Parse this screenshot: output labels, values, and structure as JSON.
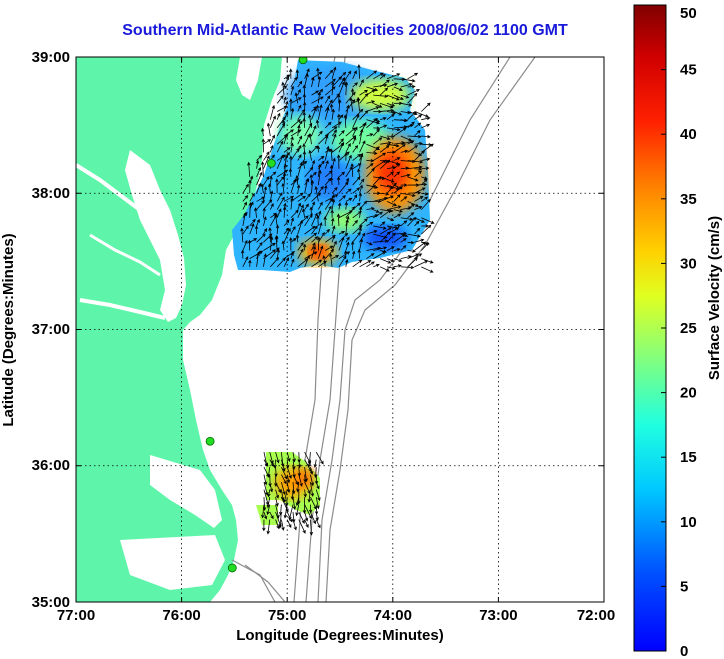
{
  "title": "Southern Mid-Atlantic Raw Velocities 2008/06/02 1100 GMT",
  "xlabel": "Longitude (Degrees:Minutes)",
  "ylabel": "Latitude (Degrees:Minutes)",
  "x_ticks": [
    "77:00",
    "76:00",
    "75:00",
    "74:00",
    "73:00",
    "72:00"
  ],
  "y_ticks": [
    "39:00",
    "38:00",
    "37:00",
    "36:00",
    "35:00"
  ],
  "colorbar": {
    "label": "Surface Velocity (cm/s)",
    "ticks": [
      "0",
      "5",
      "10",
      "15",
      "20",
      "25",
      "30",
      "35",
      "40",
      "45",
      "50"
    ],
    "range": [
      0,
      50
    ]
  },
  "colors": {
    "title": "#1a1adb",
    "land": "#5ef5aa",
    "contour": "#8c8c8c",
    "station": "#22dd22"
  },
  "map": {
    "lon_range": [
      -77,
      -72
    ],
    "lat_range": [
      35,
      39
    ],
    "grid": "dotted",
    "stations": [
      {
        "lon": -74.85,
        "lat": 38.98
      },
      {
        "lon": -75.15,
        "lat": 38.22
      },
      {
        "lon": -75.73,
        "lat": 36.18
      },
      {
        "lon": -75.52,
        "lat": 35.25
      }
    ],
    "velocity_patches": [
      {
        "region": "northern",
        "lon_min": -75.55,
        "lon_max": -73.7,
        "lat_min": 37.4,
        "lat_max": 38.9
      },
      {
        "region": "hotspot",
        "lon": -74.78,
        "lat": 37.55,
        "speed_cm_s": 38
      },
      {
        "region": "hotspot",
        "lon": -74.02,
        "lat": 38.1,
        "speed_cm_s": 37
      },
      {
        "region": "southern",
        "lon_min": -75.22,
        "lon_max": -74.7,
        "lat_min": 35.55,
        "lat_max": 36.1
      }
    ]
  }
}
